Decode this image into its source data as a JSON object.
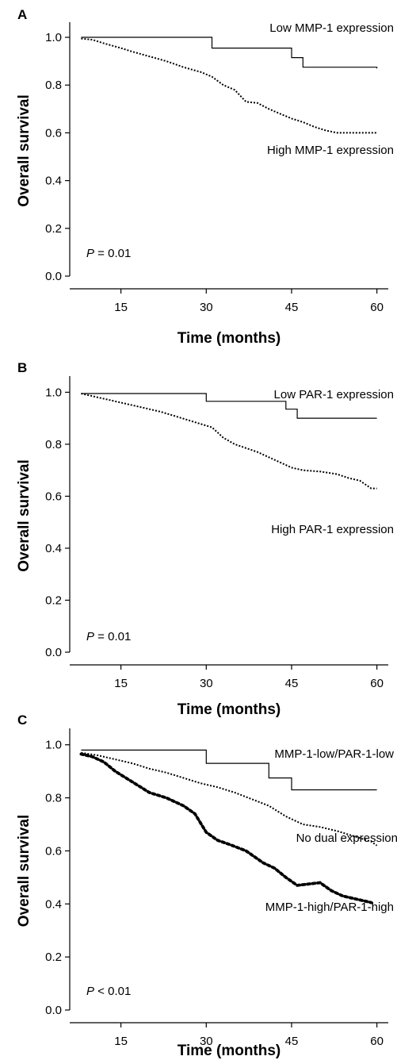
{
  "chart_data": [
    {
      "type": "line",
      "panel": "A",
      "xlabel": "Time (months)",
      "ylabel": "Overall survival",
      "xlim": [
        6,
        62
      ],
      "ylim": [
        0,
        1.05
      ],
      "xticks": [
        15,
        30,
        45,
        60
      ],
      "yticks": [
        "0.0",
        "0.2",
        "0.4",
        "0.6",
        "0.8",
        "1.0"
      ],
      "annotation": {
        "prefix": "P",
        "text": " = 0.01"
      },
      "series": [
        {
          "name": "Low MMP-1 expression",
          "style": "solid",
          "x": [
            8,
            31,
            31,
            45,
            45,
            47,
            47,
            60
          ],
          "y": [
            1.0,
            1.0,
            0.955,
            0.955,
            0.915,
            0.915,
            0.875,
            0.87
          ]
        },
        {
          "name": "High MMP-1 expression",
          "style": "dotted",
          "x": [
            8,
            10,
            12,
            15,
            17,
            20,
            23,
            26,
            29,
            31,
            33,
            35,
            37,
            39,
            41,
            43,
            45,
            47,
            49,
            51,
            53,
            55,
            57,
            60
          ],
          "y": [
            0.995,
            0.99,
            0.975,
            0.955,
            0.94,
            0.92,
            0.9,
            0.875,
            0.855,
            0.835,
            0.8,
            0.78,
            0.73,
            0.725,
            0.7,
            0.68,
            0.66,
            0.645,
            0.625,
            0.61,
            0.6,
            0.6,
            0.6,
            0.6
          ]
        }
      ]
    },
    {
      "type": "line",
      "panel": "B",
      "xlabel": "Time (months)",
      "ylabel": "Overall survival",
      "xlim": [
        6,
        62
      ],
      "ylim": [
        0,
        1.05
      ],
      "xticks": [
        15,
        30,
        45,
        60
      ],
      "yticks": [
        "0.0",
        "0.2",
        "0.4",
        "0.6",
        "0.8",
        "1.0"
      ],
      "annotation": {
        "prefix": "P",
        "text": " = 0.01"
      },
      "series": [
        {
          "name": "Low PAR-1 expression",
          "style": "solid",
          "x": [
            8,
            30,
            30,
            44,
            44,
            46,
            46,
            60
          ],
          "y": [
            0.995,
            0.995,
            0.965,
            0.965,
            0.935,
            0.935,
            0.9,
            0.9
          ]
        },
        {
          "name": "High PAR-1 expression",
          "style": "dotted",
          "x": [
            8,
            10,
            13,
            16,
            19,
            22,
            25,
            28,
            31,
            33,
            35,
            37,
            39,
            41,
            43,
            45,
            47,
            50,
            53,
            55,
            57,
            59,
            60
          ],
          "y": [
            0.995,
            0.985,
            0.97,
            0.955,
            0.94,
            0.925,
            0.905,
            0.885,
            0.865,
            0.825,
            0.8,
            0.785,
            0.77,
            0.75,
            0.73,
            0.71,
            0.7,
            0.695,
            0.685,
            0.67,
            0.66,
            0.63,
            0.63
          ]
        }
      ]
    },
    {
      "type": "line",
      "panel": "C",
      "xlabel": "Time (months)",
      "ylabel": "Overall survival",
      "xlim": [
        6,
        62
      ],
      "ylim": [
        0,
        1.05
      ],
      "xticks": [
        15,
        30,
        45,
        60
      ],
      "yticks": [
        "0.0",
        "0.2",
        "0.4",
        "0.6",
        "0.8",
        "1.0"
      ],
      "annotation": {
        "prefix": "P",
        "text": " < 0.01"
      },
      "series": [
        {
          "name": "MMP-1-low/PAR-1-low",
          "style": "solid",
          "x": [
            8,
            30,
            30,
            41,
            41,
            45,
            45,
            60
          ],
          "y": [
            0.98,
            0.98,
            0.93,
            0.93,
            0.875,
            0.875,
            0.83,
            0.83
          ]
        },
        {
          "name": "No dual expression",
          "style": "dotted",
          "x": [
            8,
            11,
            14,
            17,
            20,
            23,
            26,
            29,
            32,
            35,
            38,
            41,
            44,
            47,
            50,
            53,
            56,
            59,
            60
          ],
          "y": [
            0.97,
            0.96,
            0.945,
            0.93,
            0.91,
            0.895,
            0.875,
            0.855,
            0.84,
            0.82,
            0.795,
            0.77,
            0.73,
            0.7,
            0.69,
            0.675,
            0.655,
            0.635,
            0.62
          ]
        },
        {
          "name": "MMP-1-high/PAR-1-high",
          "style": "heavy-dotted",
          "x": [
            8,
            10,
            12,
            14,
            17,
            20,
            23,
            26,
            28,
            30,
            32,
            34,
            37,
            40,
            42,
            44,
            46,
            48,
            50,
            52,
            54,
            56,
            58,
            59
          ],
          "y": [
            0.965,
            0.955,
            0.935,
            0.9,
            0.86,
            0.82,
            0.8,
            0.77,
            0.74,
            0.67,
            0.64,
            0.625,
            0.6,
            0.555,
            0.535,
            0.5,
            0.47,
            0.475,
            0.48,
            0.45,
            0.43,
            0.42,
            0.41,
            0.405
          ]
        }
      ]
    }
  ]
}
